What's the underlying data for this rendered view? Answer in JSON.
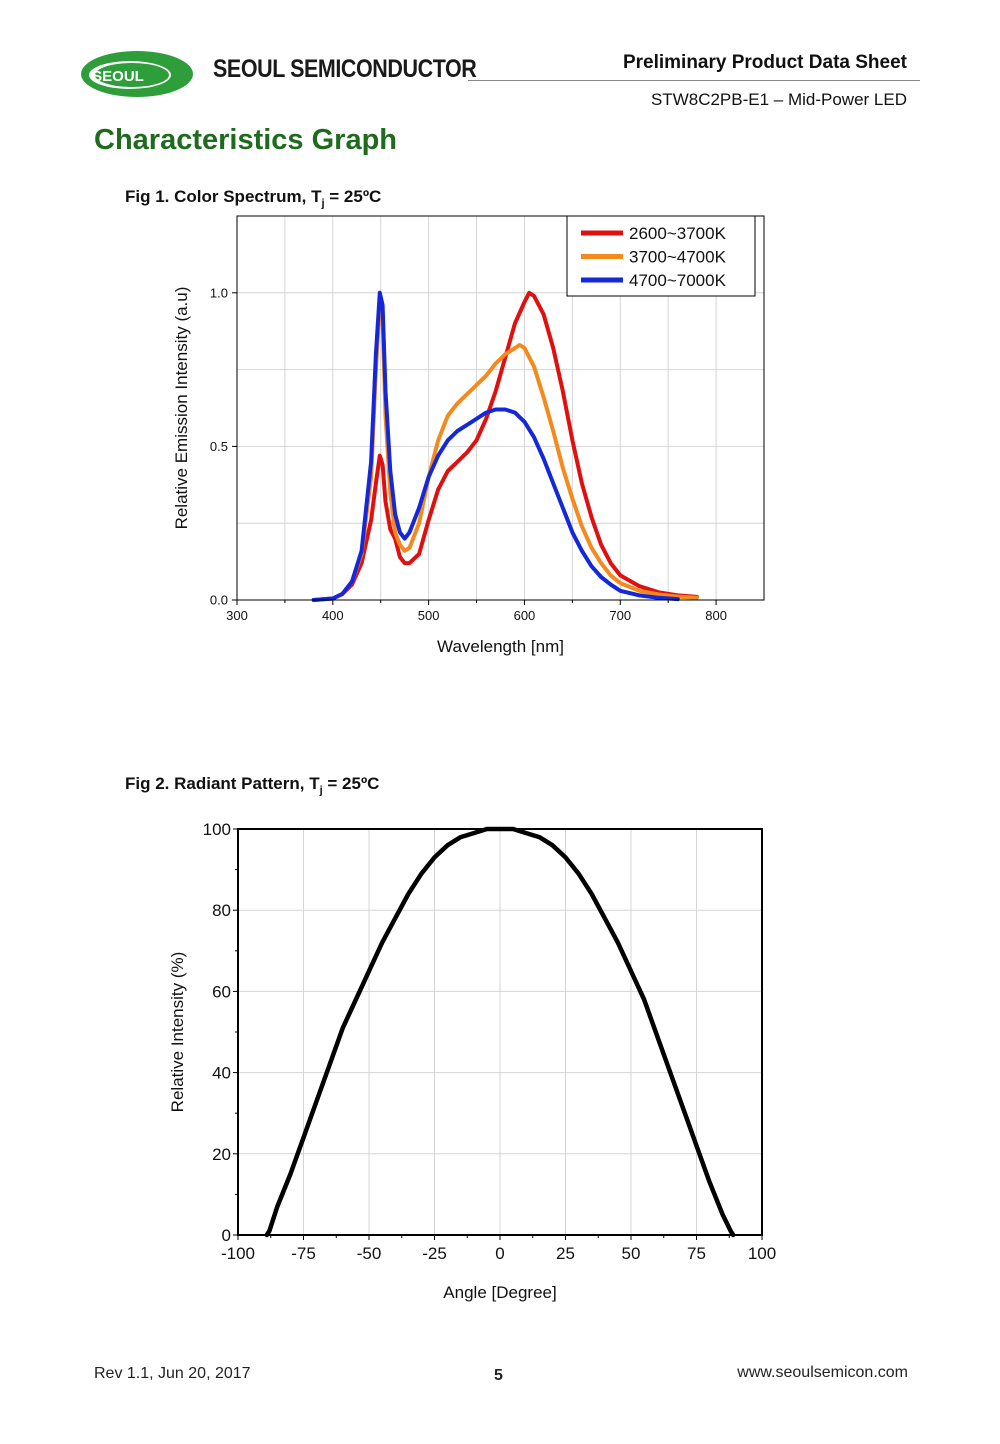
{
  "header": {
    "logo_text": "SEOUL",
    "brand": "SEOUL SEMICONDUCTOR",
    "doc_title": "Preliminary Product Data Sheet",
    "doc_subtitle": "STW8C2PB-E1 – Mid-Power LED",
    "logo_color": "#2e9e3a"
  },
  "section_title": "Characteristics Graph",
  "fig1": {
    "caption_pre": "Fig 1. Color Spectrum, T",
    "caption_sub": "j",
    "caption_post": " = 25ºC"
  },
  "fig2": {
    "caption_pre": "Fig 2. Radiant Pattern, T",
    "caption_sub": "j",
    "caption_post": " = 25ºC"
  },
  "chart_data": [
    {
      "type": "line",
      "title": "Fig 1. Color Spectrum, Tj = 25ºC",
      "xlabel": "Wavelength [nm]",
      "ylabel": "Relative Emission Intensity (a.u)",
      "xlim": [
        300,
        850
      ],
      "ylim": [
        0,
        1.25
      ],
      "xticks": [
        300,
        400,
        500,
        600,
        700,
        800
      ],
      "yticks": [
        0.0,
        0.5,
        1.0
      ],
      "ytick_labels": [
        "0.0",
        "0.5",
        "1.0"
      ],
      "grid": true,
      "legend_position": "top-right",
      "series": [
        {
          "name": "2600~3700K",
          "color": "#e01010",
          "x": [
            380,
            400,
            410,
            420,
            430,
            440,
            445,
            449,
            452,
            455,
            460,
            465,
            470,
            475,
            480,
            490,
            500,
            510,
            520,
            530,
            540,
            550,
            560,
            570,
            580,
            590,
            600,
            605,
            610,
            620,
            630,
            640,
            650,
            660,
            670,
            680,
            690,
            700,
            720,
            740,
            760,
            780
          ],
          "y": [
            0.0,
            0.005,
            0.02,
            0.05,
            0.12,
            0.26,
            0.38,
            0.47,
            0.44,
            0.32,
            0.23,
            0.2,
            0.14,
            0.12,
            0.12,
            0.15,
            0.26,
            0.36,
            0.42,
            0.45,
            0.48,
            0.52,
            0.59,
            0.68,
            0.79,
            0.9,
            0.97,
            1.0,
            0.99,
            0.93,
            0.82,
            0.68,
            0.52,
            0.38,
            0.27,
            0.18,
            0.12,
            0.08,
            0.045,
            0.025,
            0.015,
            0.01
          ]
        },
        {
          "name": "3700~4700K",
          "color": "#f48a1e",
          "x": [
            380,
            400,
            410,
            420,
            430,
            440,
            445,
            449,
            452,
            455,
            460,
            465,
            470,
            475,
            480,
            490,
            500,
            510,
            520,
            530,
            540,
            550,
            560,
            570,
            580,
            590,
            595,
            600,
            610,
            620,
            630,
            640,
            650,
            660,
            670,
            680,
            690,
            700,
            720,
            740,
            760,
            780
          ],
          "y": [
            0.0,
            0.005,
            0.02,
            0.06,
            0.15,
            0.4,
            0.75,
            0.97,
            0.92,
            0.6,
            0.35,
            0.22,
            0.18,
            0.16,
            0.17,
            0.25,
            0.4,
            0.52,
            0.6,
            0.64,
            0.67,
            0.7,
            0.73,
            0.77,
            0.8,
            0.82,
            0.83,
            0.82,
            0.76,
            0.66,
            0.55,
            0.43,
            0.33,
            0.24,
            0.17,
            0.12,
            0.08,
            0.055,
            0.03,
            0.018,
            0.011,
            0.007
          ]
        },
        {
          "name": "4700~7000K",
          "color": "#1428d8",
          "x": [
            380,
            400,
            410,
            420,
            430,
            440,
            445,
            449,
            452,
            455,
            460,
            465,
            470,
            475,
            480,
            490,
            500,
            510,
            520,
            530,
            540,
            550,
            560,
            570,
            580,
            590,
            600,
            610,
            620,
            630,
            640,
            650,
            660,
            670,
            680,
            690,
            700,
            720,
            740,
            760
          ],
          "y": [
            0.0,
            0.005,
            0.02,
            0.06,
            0.16,
            0.45,
            0.8,
            1.0,
            0.96,
            0.68,
            0.42,
            0.28,
            0.22,
            0.2,
            0.22,
            0.3,
            0.4,
            0.47,
            0.52,
            0.55,
            0.57,
            0.59,
            0.61,
            0.62,
            0.62,
            0.61,
            0.58,
            0.53,
            0.46,
            0.38,
            0.3,
            0.22,
            0.16,
            0.11,
            0.075,
            0.05,
            0.03,
            0.015,
            0.007,
            0.003
          ]
        }
      ]
    },
    {
      "type": "line",
      "title": "Fig 2. Radiant Pattern, Tj = 25ºC",
      "xlabel": "Angle [Degree]",
      "ylabel": "Relative Intensity (%)",
      "xlim": [
        -100,
        100
      ],
      "ylim": [
        0,
        100
      ],
      "xticks": [
        -100,
        -75,
        -50,
        -25,
        0,
        25,
        50,
        75,
        100
      ],
      "yticks": [
        0,
        20,
        40,
        60,
        80,
        100
      ],
      "grid": true,
      "series": [
        {
          "name": "Relative Intensity",
          "color": "#000000",
          "x": [
            -89,
            -88,
            -85,
            -80,
            -75,
            -70,
            -65,
            -60,
            -55,
            -50,
            -45,
            -40,
            -35,
            -30,
            -25,
            -20,
            -15,
            -10,
            -5,
            0,
            5,
            10,
            15,
            20,
            25,
            30,
            35,
            40,
            45,
            50,
            55,
            60,
            65,
            70,
            75,
            80,
            85,
            88,
            89
          ],
          "y": [
            0,
            1,
            7,
            15,
            24,
            33,
            42,
            51,
            58,
            65,
            72,
            78,
            84,
            89,
            93,
            96,
            98,
            99,
            100,
            100,
            100,
            99,
            98,
            96,
            93,
            89,
            84,
            78,
            72,
            65,
            58,
            49,
            40,
            31,
            22,
            13,
            5,
            1,
            0
          ]
        }
      ]
    }
  ],
  "footer": {
    "revision": "Rev 1.1, Jun 20, 2017",
    "page": "5",
    "website": "www.seoulsemicon.com"
  }
}
